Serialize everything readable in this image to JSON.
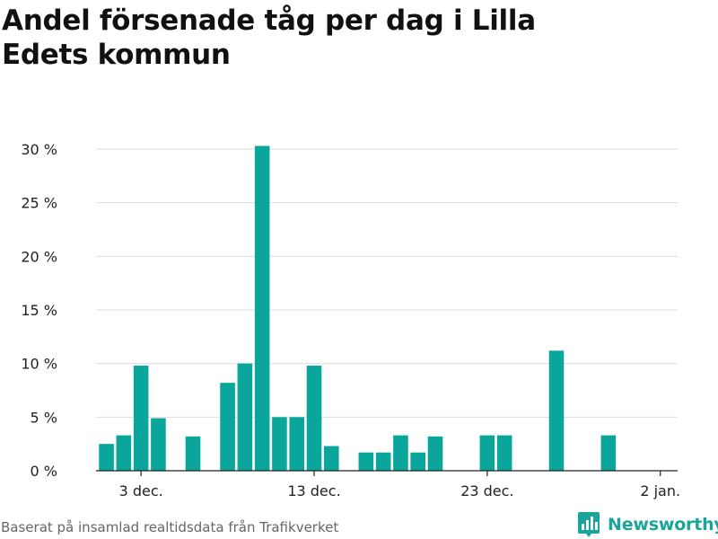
{
  "title": "Andel försenade tåg per dag i Lilla Edets kommun",
  "source": "Baserat på insamlad realtidsdata från Trafikverket",
  "brand": {
    "name": "Newsworthy",
    "icon": "newsworthy-logo-icon",
    "color": "#19a59a"
  },
  "chart_data": {
    "type": "bar",
    "title": "Andel försenade tåg per dag i Lilla Edets kommun",
    "xlabel": "",
    "ylabel": "",
    "bar_color": "#0aa69b",
    "grid": true,
    "ylim": [
      0,
      30
    ],
    "y_ticks": [
      0,
      5,
      10,
      15,
      20,
      25,
      30
    ],
    "y_tick_labels": [
      "0 %",
      "5 %",
      "10 %",
      "15 %",
      "20 %",
      "25 %",
      "30 %"
    ],
    "x_range": [
      "2019-11-29",
      "2020-01-03"
    ],
    "x_ticks": [
      "2019-12-03",
      "2019-12-13",
      "2019-12-23",
      "2020-01-02"
    ],
    "x_tick_labels": [
      "3 dec.",
      "13 dec.",
      "23 dec.",
      "2 jan."
    ],
    "values": [
      {
        "x": "2019-12-01",
        "y": 2.5
      },
      {
        "x": "2019-12-02",
        "y": 3.3
      },
      {
        "x": "2019-12-03",
        "y": 9.8
      },
      {
        "x": "2019-12-04",
        "y": 4.9
      },
      {
        "x": "2019-12-06",
        "y": 3.2
      },
      {
        "x": "2019-12-08",
        "y": 8.2
      },
      {
        "x": "2019-12-09",
        "y": 10.0
      },
      {
        "x": "2019-12-10",
        "y": 30.3
      },
      {
        "x": "2019-12-11",
        "y": 5.0
      },
      {
        "x": "2019-12-12",
        "y": 5.0
      },
      {
        "x": "2019-12-13",
        "y": 9.8
      },
      {
        "x": "2019-12-14",
        "y": 2.3
      },
      {
        "x": "2019-12-16",
        "y": 1.7
      },
      {
        "x": "2019-12-17",
        "y": 1.7
      },
      {
        "x": "2019-12-18",
        "y": 3.3
      },
      {
        "x": "2019-12-19",
        "y": 1.7
      },
      {
        "x": "2019-12-20",
        "y": 3.2
      },
      {
        "x": "2019-12-23",
        "y": 3.3
      },
      {
        "x": "2019-12-24",
        "y": 3.3
      },
      {
        "x": "2019-12-27",
        "y": 11.2
      },
      {
        "x": "2019-12-30",
        "y": 3.3
      }
    ]
  }
}
